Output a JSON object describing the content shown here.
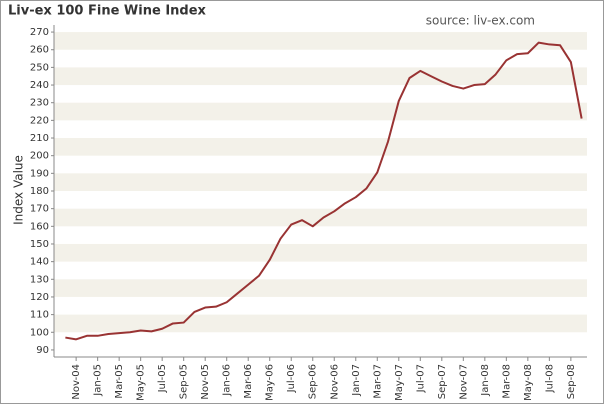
{
  "chart_data": {
    "type": "line",
    "title": "Liv-ex 100 Fine Wine Index",
    "subtitle": "source: liv-ex.com",
    "ylabel": "Index Value",
    "categories": [
      null,
      "Nov-04",
      null,
      "Jan-05",
      null,
      "Mar-05",
      null,
      "May-05",
      null,
      "Jul-05",
      null,
      "Sep-05",
      null,
      "Nov-05",
      null,
      "Jan-06",
      null,
      "Mar-06",
      null,
      "May-06",
      null,
      "Jul-06",
      null,
      "Sep-06",
      null,
      "Nov-06",
      null,
      "Jan-07",
      null,
      "Mar-07",
      null,
      "May-07",
      null,
      "Jul-07",
      null,
      "Sep-07",
      null,
      "Nov-07",
      null,
      "Jan-08",
      null,
      "Mar-08",
      null,
      "May-08",
      null,
      "Jul-08",
      null,
      "Sep-08",
      null
    ],
    "series": [
      {
        "name": "Liv-ex 100",
        "color": "#993333",
        "values": [
          97,
          96,
          98,
          98,
          99,
          99.5,
          100,
          101,
          100.5,
          102,
          105,
          105.5,
          111.5,
          114,
          114.5,
          117,
          122,
          127,
          132,
          141,
          153,
          161,
          163.5,
          160,
          165,
          168.5,
          173,
          176.5,
          181.5,
          190.5,
          208,
          231,
          244,
          248,
          245,
          242,
          239.5,
          238,
          240,
          240.5,
          246,
          254,
          257.5,
          258,
          264,
          263,
          262.5,
          253,
          221
        ]
      }
    ],
    "ylim": [
      86,
      274
    ],
    "yticks": [
      90,
      100,
      110,
      120,
      130,
      140,
      150,
      160,
      170,
      180,
      190,
      200,
      210,
      220,
      230,
      240,
      250,
      260,
      270
    ],
    "grid": true
  }
}
